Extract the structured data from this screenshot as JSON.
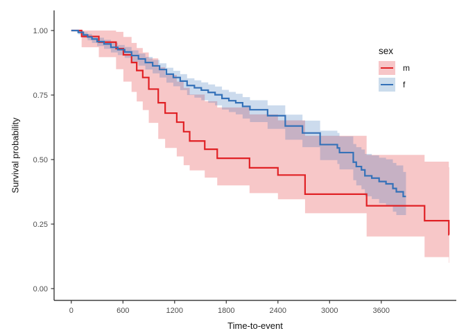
{
  "figure": {
    "background": "#FFFFFF",
    "axis_line_color": "#1A1A1A",
    "tick_color": "#333333",
    "tick_label_color": "#4D4D4D"
  },
  "legend": {
    "title": "sex",
    "position": "right",
    "items": [
      {
        "label": "m",
        "line_color": "#E02125",
        "fill_color": "#F7C6C8"
      },
      {
        "label": "f",
        "line_color": "#3471B8",
        "fill_color": "#CBDCEC"
      }
    ]
  },
  "chart_data": {
    "type": "line",
    "subtype": "kaplan-meier-step",
    "title": "",
    "xlabel": "Time-to-event",
    "ylabel": "Survival probability",
    "xlim": [
      0,
      4470
    ],
    "ylim": [
      0,
      1
    ],
    "grid": false,
    "x_ticks": [
      0,
      600,
      1200,
      1800,
      2400,
      3000,
      3600
    ],
    "y_ticks": [
      0,
      0.25,
      0.5,
      0.75,
      1
    ],
    "y_tick_labels": [
      "0.00",
      "0.25",
      "0.50",
      "0.75",
      "1.00"
    ],
    "confidence_bands": true,
    "series": [
      {
        "name": "m",
        "line_color": "#E02125",
        "band_color": "#E02125",
        "band_opacity": 0.25,
        "t_end": 4390,
        "times": [
          0,
          120,
          320,
          520,
          605,
          700,
          760,
          830,
          900,
          1010,
          1090,
          1225,
          1305,
          1375,
          1550,
          1695,
          2070,
          2400,
          2715,
          3430,
          4103,
          4385
        ],
        "surv": [
          1.0,
          0.977,
          0.955,
          0.93,
          0.906,
          0.876,
          0.845,
          0.818,
          0.773,
          0.72,
          0.68,
          0.645,
          0.608,
          0.572,
          0.54,
          0.505,
          0.468,
          0.44,
          0.366,
          0.321,
          0.263,
          0.209
        ],
        "upper": [
          1.0,
          1.0,
          1.0,
          0.995,
          0.975,
          0.952,
          0.932,
          0.915,
          0.892,
          0.858,
          0.828,
          0.802,
          0.778,
          0.752,
          0.726,
          0.702,
          0.675,
          0.652,
          0.592,
          0.518,
          0.492,
          0.47
        ],
        "lower": [
          1.0,
          0.935,
          0.897,
          0.85,
          0.802,
          0.762,
          0.725,
          0.692,
          0.642,
          0.58,
          0.545,
          0.512,
          0.478,
          0.458,
          0.43,
          0.4,
          0.37,
          0.346,
          0.292,
          0.202,
          0.122,
          0.1
        ]
      },
      {
        "name": "f",
        "line_color": "#3471B8",
        "band_color": "#3471B8",
        "band_opacity": 0.25,
        "t_end": 3887,
        "times": [
          0,
          80,
          140,
          190,
          240,
          300,
          380,
          460,
          540,
          620,
          700,
          780,
          860,
          945,
          1025,
          1105,
          1185,
          1265,
          1345,
          1430,
          1510,
          1590,
          1670,
          1750,
          1830,
          1910,
          1990,
          2075,
          2280,
          2485,
          2685,
          2890,
          3090,
          3115,
          3275,
          3310,
          3370,
          3410,
          3490,
          3575,
          3655,
          3735,
          3775,
          3855
        ],
        "surv": [
          1.0,
          0.993,
          0.983,
          0.975,
          0.967,
          0.957,
          0.948,
          0.935,
          0.926,
          0.917,
          0.903,
          0.89,
          0.876,
          0.863,
          0.849,
          0.831,
          0.818,
          0.804,
          0.787,
          0.778,
          0.769,
          0.76,
          0.751,
          0.737,
          0.728,
          0.72,
          0.706,
          0.693,
          0.67,
          0.63,
          0.603,
          0.558,
          0.545,
          0.527,
          0.49,
          0.473,
          0.46,
          0.437,
          0.428,
          0.415,
          0.406,
          0.388,
          0.375,
          0.357
        ],
        "upper": [
          1.0,
          1.0,
          0.993,
          0.987,
          0.98,
          0.972,
          0.964,
          0.952,
          0.944,
          0.936,
          0.923,
          0.911,
          0.898,
          0.886,
          0.873,
          0.856,
          0.844,
          0.831,
          0.815,
          0.807,
          0.799,
          0.791,
          0.783,
          0.77,
          0.762,
          0.755,
          0.742,
          0.73,
          0.71,
          0.674,
          0.651,
          0.612,
          0.603,
          0.59,
          0.56,
          0.548,
          0.539,
          0.522,
          0.516,
          0.507,
          0.501,
          0.487,
          0.477,
          0.452
        ],
        "lower": [
          1.0,
          0.985,
          0.972,
          0.962,
          0.952,
          0.94,
          0.929,
          0.915,
          0.905,
          0.894,
          0.879,
          0.864,
          0.849,
          0.834,
          0.818,
          0.798,
          0.784,
          0.769,
          0.75,
          0.74,
          0.73,
          0.72,
          0.71,
          0.694,
          0.684,
          0.675,
          0.659,
          0.645,
          0.619,
          0.577,
          0.548,
          0.498,
          0.483,
          0.462,
          0.42,
          0.4,
          0.385,
          0.358,
          0.347,
          0.331,
          0.32,
          0.298,
          0.285,
          0.285
        ]
      }
    ]
  }
}
